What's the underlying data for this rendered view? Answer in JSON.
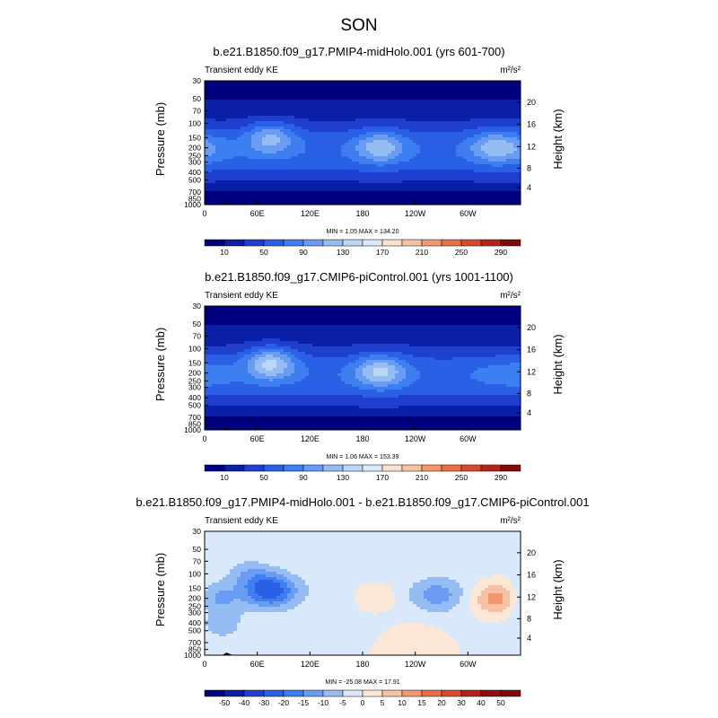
{
  "figure": {
    "season": "SON"
  },
  "chart_data": [
    {
      "type": "heatmap",
      "title": "b.e21.B1850.f09_g17.PMIP4-midHolo.001 (yrs 601-700)",
      "field": "Transient eddy KE",
      "units": "m²/s²",
      "ylabel": "Pressure (mb)",
      "ylabel_right": "Height (km)",
      "xticks": [
        "0",
        "60E",
        "120E",
        "180",
        "120W",
        "60W"
      ],
      "yticks": [
        "30",
        "50",
        "70",
        "100",
        "150",
        "200",
        "250",
        "300",
        "400",
        "500",
        "700",
        "850",
        "1000"
      ],
      "yticks_right": [
        "20",
        "16",
        "12",
        "8",
        "4"
      ],
      "stats": "MIN = 1.05  MAX = 134.20",
      "min": 1.05,
      "max": 134.2,
      "colorbar_labels": [
        "10",
        "50",
        "90",
        "130",
        "170",
        "210",
        "250",
        "290"
      ],
      "colorbar_levels": [
        10,
        30,
        50,
        70,
        90,
        110,
        130,
        150,
        170,
        190,
        210,
        230,
        250,
        270,
        290
      ],
      "colorbar_colors": [
        "#00007f",
        "#0a1fa6",
        "#1f40cf",
        "#2a60e6",
        "#3d7ff0",
        "#6a9cf3",
        "#95bcf3",
        "#bcd6f6",
        "#dbe9fb",
        "#fbe3d2",
        "#f7c1a4",
        "#f2976f",
        "#e96f45",
        "#d84a2b",
        "#b72218",
        "#7e0a0a"
      ],
      "blobs": [
        {
          "lon": 5,
          "p": 200,
          "value": 80
        },
        {
          "lon": 75,
          "p": 150,
          "value": 120
        },
        {
          "lon": 200,
          "p": 195,
          "value": 122
        },
        {
          "lon": 330,
          "p": 195,
          "value": 118
        }
      ]
    },
    {
      "type": "heatmap",
      "title": "b.e21.B1850.f09_g17.CMIP6-piControl.001 (yrs 1001-1100)",
      "field": "Transient eddy KE",
      "units": "m²/s²",
      "ylabel": "Pressure (mb)",
      "ylabel_right": "Height (km)",
      "xticks": [
        "0",
        "60E",
        "120E",
        "180",
        "120W",
        "60W"
      ],
      "yticks": [
        "30",
        "50",
        "70",
        "100",
        "150",
        "200",
        "250",
        "300",
        "400",
        "500",
        "700",
        "850",
        "1000"
      ],
      "yticks_right": [
        "20",
        "16",
        "12",
        "8",
        "4"
      ],
      "stats": "MIN =  1.06  MAX = 153.39",
      "min": 1.06,
      "max": 153.39,
      "colorbar_labels": [
        "10",
        "50",
        "90",
        "130",
        "170",
        "210",
        "250",
        "290"
      ],
      "colorbar_levels": [
        10,
        30,
        50,
        70,
        90,
        110,
        130,
        150,
        170,
        190,
        210,
        230,
        250,
        270,
        290
      ],
      "colorbar_colors": [
        "#00007f",
        "#0a1fa6",
        "#1f40cf",
        "#2a60e6",
        "#3d7ff0",
        "#6a9cf3",
        "#95bcf3",
        "#bcd6f6",
        "#dbe9fb",
        "#fbe3d2",
        "#f7c1a4",
        "#f2976f",
        "#e96f45",
        "#d84a2b",
        "#b72218",
        "#7e0a0a"
      ],
      "blobs": [
        {
          "lon": 5,
          "p": 200,
          "value": 75
        },
        {
          "lon": 75,
          "p": 150,
          "value": 140
        },
        {
          "lon": 200,
          "p": 190,
          "value": 132
        },
        {
          "lon": 330,
          "p": 195,
          "value": 70
        }
      ]
    },
    {
      "type": "heatmap",
      "title": "b.e21.B1850.f09_g17.PMIP4-midHolo.001 - b.e21.B1850.f09_g17.CMIP6-piControl.001",
      "field": "Transient eddy KE",
      "units": "m²/s²",
      "ylabel": "Pressure (mb)",
      "ylabel_right": "Height (km)",
      "xticks": [
        "0",
        "60E",
        "120E",
        "180",
        "120W",
        "60W"
      ],
      "yticks": [
        "30",
        "50",
        "70",
        "100",
        "150",
        "200",
        "250",
        "300",
        "400",
        "500",
        "700",
        "850",
        "1000"
      ],
      "yticks_right": [
        "20",
        "16",
        "12",
        "8",
        "4"
      ],
      "stats": "MIN = -25.08  MAX = 17.91",
      "min": -25.08,
      "max": 17.91,
      "colorbar_labels": [
        "-50",
        "-40",
        "-30",
        "-20",
        "-15",
        "-10",
        "-5",
        "0",
        "5",
        "10",
        "15",
        "20",
        "30",
        "40",
        "50"
      ],
      "colorbar_levels": [
        -50,
        -40,
        -30,
        -20,
        -15,
        -10,
        -5,
        0,
        5,
        10,
        15,
        20,
        30,
        40,
        50
      ],
      "colorbar_colors": [
        "#00007f",
        "#0a1fa6",
        "#1f40cf",
        "#2a60e6",
        "#3d7ff0",
        "#6a9cf3",
        "#95bcf3",
        "#d9e9fb",
        "#fce7d6",
        "#f7c1a4",
        "#f2976f",
        "#e96f45",
        "#d84a2b",
        "#b72218",
        "#8f1010",
        "#7e0a0a"
      ],
      "blobs": [
        {
          "lon": 10,
          "p": 200,
          "value": -10
        },
        {
          "lon": 45,
          "p": 100,
          "value": -12
        },
        {
          "lon": 75,
          "p": 160,
          "value": -22
        },
        {
          "lon": 195,
          "p": 190,
          "value": 6
        },
        {
          "lon": 265,
          "p": 180,
          "value": -10
        },
        {
          "lon": 335,
          "p": 200,
          "value": 17
        },
        {
          "lon": 35,
          "p": 100,
          "value": 6
        },
        {
          "lon": 20,
          "p": 450,
          "value": -6
        },
        {
          "lon": 240,
          "p": 620,
          "value": 3
        }
      ]
    }
  ]
}
